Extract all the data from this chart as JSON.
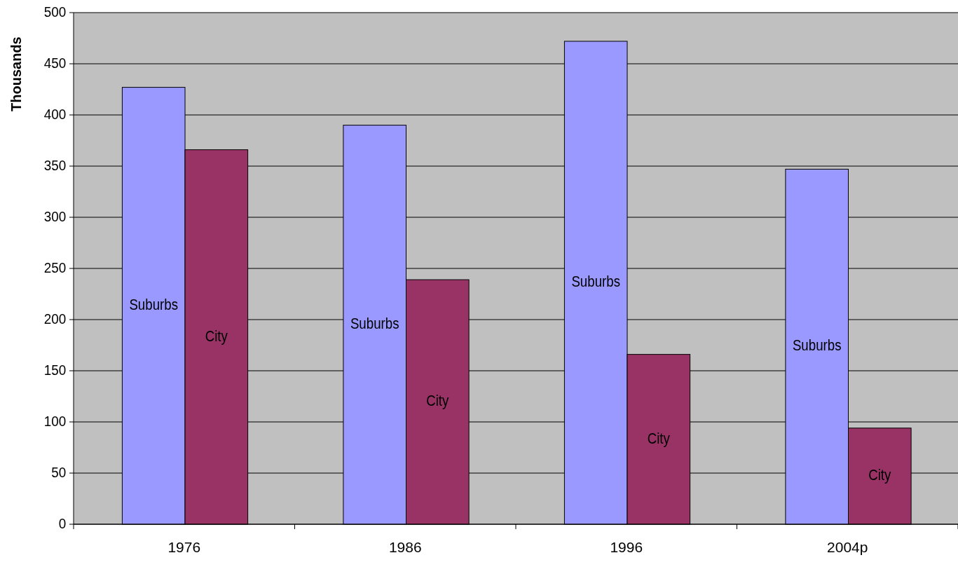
{
  "chart_data": {
    "type": "bar",
    "ylabel": "Thousands",
    "categories": [
      "1976",
      "1986",
      "1996",
      "2004p"
    ],
    "series": [
      {
        "name": "Suburbs",
        "color": "#9999ff",
        "values": [
          427,
          390,
          472,
          347
        ]
      },
      {
        "name": "City",
        "color": "#993366",
        "values": [
          366,
          239,
          166,
          94
        ]
      }
    ],
    "ylim": [
      0,
      500
    ],
    "yticks": [
      0,
      50,
      100,
      150,
      200,
      250,
      300,
      350,
      400,
      450,
      500
    ],
    "grid": "y"
  }
}
